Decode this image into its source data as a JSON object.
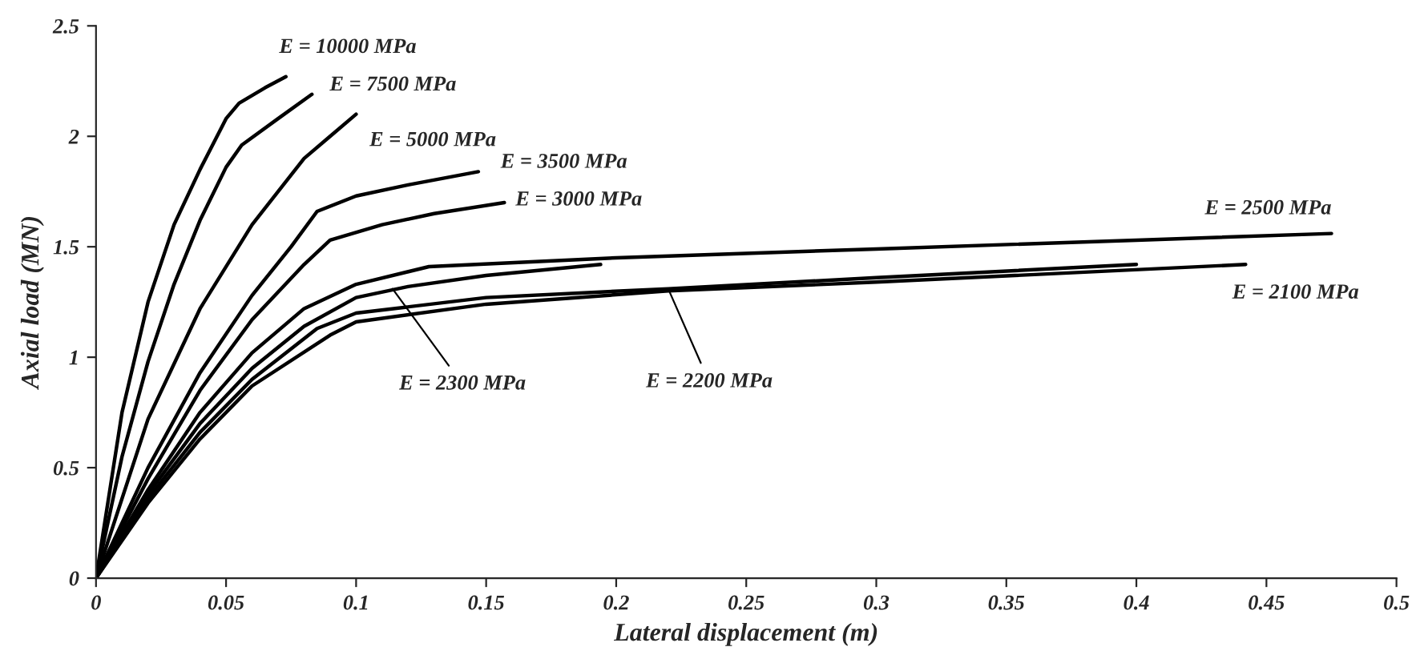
{
  "chart_data": {
    "type": "line",
    "xlabel": "Lateral displacement (m)",
    "ylabel": "Axial load (MN)",
    "xlim": [
      0,
      0.5
    ],
    "ylim": [
      0,
      2.5
    ],
    "xticks": [
      0,
      0.05,
      0.1,
      0.15,
      0.2,
      0.25,
      0.3,
      0.35,
      0.4,
      0.45,
      0.5
    ],
    "yticks": [
      0,
      0.5,
      1,
      1.5,
      2,
      2.5
    ],
    "grid": false,
    "marker": "none",
    "line_style": "solid",
    "series": [
      {
        "color": "#000000",
        "x": [
          0,
          0.01,
          0.02,
          0.03,
          0.04,
          0.05,
          0.055,
          0.065,
          0.073
        ],
        "values": [
          0,
          0.75,
          1.25,
          1.6,
          1.85,
          2.08,
          2.15,
          2.22,
          2.27
        ]
      },
      {
        "color": "#000000",
        "x": [
          0,
          0.01,
          0.02,
          0.03,
          0.04,
          0.05,
          0.056,
          0.07,
          0.083
        ],
        "values": [
          0,
          0.55,
          0.98,
          1.33,
          1.62,
          1.86,
          1.96,
          2.08,
          2.19
        ]
      },
      {
        "color": "#000000",
        "x": [
          0,
          0.02,
          0.04,
          0.06,
          0.08,
          0.09,
          0.1
        ],
        "values": [
          0,
          0.72,
          1.22,
          1.6,
          1.9,
          2.0,
          2.1
        ]
      },
      {
        "color": "#000000",
        "x": [
          0,
          0.02,
          0.04,
          0.06,
          0.075,
          0.085,
          0.1,
          0.12,
          0.147
        ],
        "values": [
          0,
          0.5,
          0.93,
          1.28,
          1.5,
          1.66,
          1.73,
          1.78,
          1.84
        ]
      },
      {
        "color": "#000000",
        "x": [
          0,
          0.02,
          0.04,
          0.06,
          0.08,
          0.09,
          0.11,
          0.13,
          0.157
        ],
        "values": [
          0,
          0.45,
          0.85,
          1.17,
          1.42,
          1.53,
          1.6,
          1.65,
          1.7
        ]
      },
      {
        "color": "#000000",
        "x": [
          0,
          0.02,
          0.04,
          0.06,
          0.08,
          0.1,
          0.128,
          0.2,
          0.3,
          0.4,
          0.475
        ],
        "values": [
          0,
          0.4,
          0.75,
          1.02,
          1.22,
          1.33,
          1.41,
          1.45,
          1.49,
          1.53,
          1.56
        ]
      },
      {
        "color": "#000000",
        "x": [
          0,
          0.02,
          0.04,
          0.06,
          0.08,
          0.1,
          0.12,
          0.15,
          0.194
        ],
        "values": [
          0,
          0.38,
          0.7,
          0.95,
          1.14,
          1.27,
          1.32,
          1.37,
          1.42
        ]
      },
      {
        "color": "#000000",
        "x": [
          0,
          0.02,
          0.04,
          0.06,
          0.085,
          0.1,
          0.15,
          0.22,
          0.3,
          0.4
        ],
        "values": [
          0,
          0.36,
          0.66,
          0.9,
          1.13,
          1.2,
          1.27,
          1.31,
          1.36,
          1.42
        ]
      },
      {
        "color": "#000000",
        "x": [
          0,
          0.02,
          0.04,
          0.06,
          0.09,
          0.1,
          0.15,
          0.22,
          0.3,
          0.442
        ],
        "values": [
          0,
          0.34,
          0.63,
          0.87,
          1.1,
          1.16,
          1.24,
          1.3,
          1.34,
          1.42
        ]
      }
    ],
    "annotations": [
      {
        "text": "E = 10000 MPa",
        "x": 0.073,
        "y": 2.27
      },
      {
        "text": "E = 7500 MPa",
        "x": 0.083,
        "y": 2.19
      },
      {
        "text": "E = 5000 MPa",
        "x": 0.1,
        "y": 2.1
      },
      {
        "text": "E = 3500 MPa",
        "x": 0.147,
        "y": 1.84
      },
      {
        "text": "E = 3000 MPa",
        "x": 0.157,
        "y": 1.7
      },
      {
        "text": "E = 2500 MPa",
        "x": 0.475,
        "y": 1.56
      },
      {
        "text": "E = 2100 MPa",
        "x": 0.442,
        "y": 1.42
      },
      {
        "text": "E = 2200 MPa",
        "x": 0.22,
        "y": 1.31
      },
      {
        "text": "E = 2300 MPa",
        "x": 0.114,
        "y": 1.31
      }
    ]
  }
}
